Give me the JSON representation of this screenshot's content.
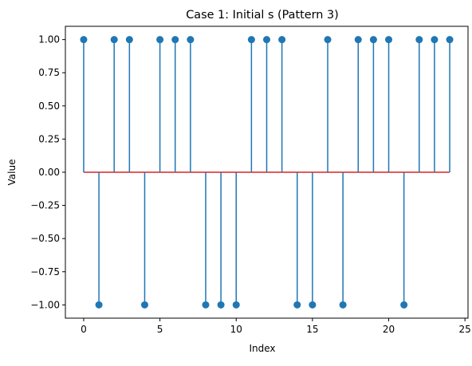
{
  "chart_data": {
    "type": "stem",
    "title": "Case 1: Initial s (Pattern 3)",
    "xlabel": "Index",
    "ylabel": "Value",
    "x": [
      0,
      1,
      2,
      3,
      4,
      5,
      6,
      7,
      8,
      9,
      10,
      11,
      12,
      13,
      14,
      15,
      16,
      17,
      18,
      19,
      20,
      21,
      22,
      23,
      24
    ],
    "values": [
      1,
      -1,
      1,
      1,
      -1,
      1,
      1,
      1,
      -1,
      -1,
      -1,
      1,
      1,
      1,
      -1,
      -1,
      1,
      -1,
      1,
      1,
      1,
      -1,
      1,
      1,
      1
    ],
    "xlim": [
      -1.2,
      25.2
    ],
    "ylim": [
      -1.1,
      1.1
    ],
    "xticks": [
      0,
      5,
      10,
      15,
      20,
      25
    ],
    "yticks": [
      -1.0,
      -0.75,
      -0.5,
      -0.25,
      0.0,
      0.25,
      0.5,
      0.75,
      1.0
    ],
    "xtick_labels": [
      "0",
      "5",
      "10",
      "15",
      "20",
      "25"
    ],
    "ytick_labels": [
      "−1.00",
      "−0.75",
      "−0.50",
      "−0.25",
      "0.00",
      "0.25",
      "0.50",
      "0.75",
      "1.00"
    ],
    "grid": false,
    "legend": "none",
    "colors": {
      "stem": "#1f77b4",
      "marker": "#1f77b4",
      "baseline": "#d62728",
      "axes": "#000000"
    }
  }
}
